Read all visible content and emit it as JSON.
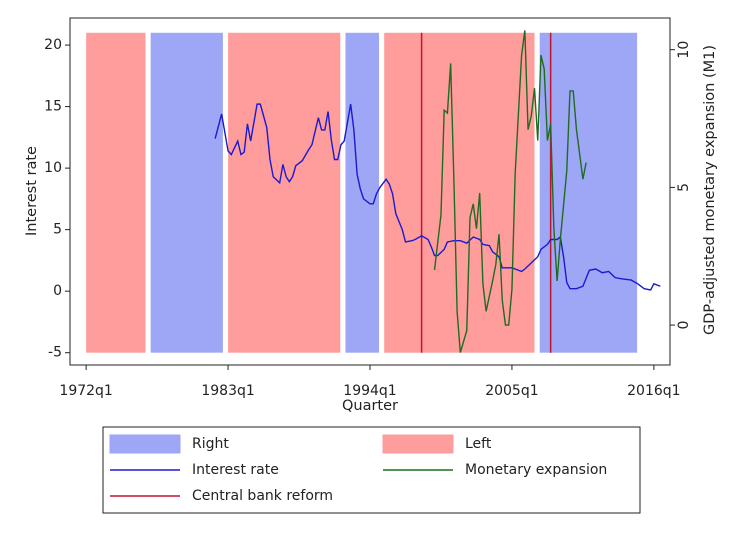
{
  "chart_data": {
    "type": "line",
    "xlabel": "Quarter",
    "ylabel": "Interest rate",
    "y2label": "GDP-adjusted monetary expansion (M1)",
    "xlim": [
      1970.75,
      2017.25
    ],
    "xticks": [
      {
        "value": 1972,
        "label": "1972q1"
      },
      {
        "value": 1983,
        "label": "1983q1"
      },
      {
        "value": 1994,
        "label": "1994q1"
      },
      {
        "value": 2005,
        "label": "2005q1"
      },
      {
        "value": 2016,
        "label": "2016q1"
      }
    ],
    "ylim": [
      -6,
      22.2
    ],
    "yticks": [
      -5,
      0,
      5,
      10,
      15,
      20
    ],
    "y2lim": [
      -1.45,
      11.15
    ],
    "y2ticks": [
      0,
      5,
      10
    ],
    "band_range": [
      -5,
      21
    ],
    "series": [
      {
        "name": "Right",
        "kind": "band",
        "color": "#9ea6f6",
        "spans": [
          [
            1977.0,
            1982.6
          ],
          [
            1992.1,
            1994.7
          ],
          [
            2007.15,
            2014.7
          ]
        ]
      },
      {
        "name": "Left",
        "kind": "band",
        "color": "#ff9d9d",
        "spans": [
          [
            1972.0,
            1976.6
          ],
          [
            1983.0,
            1991.7
          ],
          [
            1995.1,
            2006.75
          ]
        ]
      },
      {
        "name": "Interest rate",
        "kind": "line",
        "color": "#1a1ad0",
        "x": [
          1982.0,
          1982.5,
          1983.0,
          1983.25,
          1983.75,
          1984.0,
          1984.25,
          1984.5,
          1984.75,
          1985.25,
          1985.5,
          1986.0,
          1986.25,
          1986.5,
          1987.0,
          1987.25,
          1987.5,
          1987.75,
          1988.0,
          1988.25,
          1988.75,
          1989.25,
          1989.5,
          1990.0,
          1990.25,
          1990.5,
          1990.75,
          1991.0,
          1991.25,
          1991.5,
          1991.75,
          1992.0,
          1992.5,
          1992.75,
          1993.0,
          1993.25,
          1993.5,
          1994.0,
          1994.25,
          1994.5,
          1994.75,
          1995.25,
          1995.5,
          1995.75,
          1996.0,
          1996.5,
          1996.75,
          1997.25,
          1997.5,
          1998.0,
          1998.5,
          1998.75,
          1999.0,
          1999.25,
          1999.75,
          2000.0,
          2000.5,
          2001.0,
          2001.5,
          2002.0,
          2002.5,
          2002.75,
          2003.25,
          2003.5,
          2004.0,
          2004.25,
          2005.0,
          2005.25,
          2005.75,
          2006.0,
          2006.5,
          2007.0,
          2007.25,
          2007.75,
          2008.0,
          2008.5,
          2008.75,
          2009.0,
          2009.25,
          2009.5,
          2010.0,
          2010.5,
          2011.0,
          2011.5,
          2012.0,
          2012.5,
          2013.0,
          2013.5,
          2014.25,
          2014.75,
          2015.25,
          2015.75,
          2016.0,
          2016.5
        ],
        "values": [
          12.4,
          14.4,
          11.4,
          11.1,
          12.2,
          11.1,
          11.3,
          13.6,
          12.2,
          15.2,
          15.2,
          13.3,
          10.7,
          9.3,
          8.8,
          10.3,
          9.3,
          8.9,
          9.3,
          10.2,
          10.6,
          11.5,
          11.9,
          14.1,
          13.1,
          13.1,
          14.6,
          12.3,
          10.7,
          10.7,
          11.9,
          12.2,
          15.2,
          13.1,
          9.5,
          8.3,
          7.5,
          7.1,
          7.1,
          7.9,
          8.4,
          9.1,
          8.7,
          7.9,
          6.3,
          5.0,
          4.0,
          4.1,
          4.2,
          4.5,
          4.2,
          3.6,
          2.9,
          2.9,
          3.4,
          4.0,
          4.1,
          4.1,
          3.9,
          4.4,
          4.2,
          3.8,
          3.7,
          3.2,
          2.8,
          1.9,
          1.9,
          1.8,
          1.6,
          1.8,
          2.3,
          2.8,
          3.4,
          3.8,
          4.2,
          4.2,
          4.4,
          2.8,
          0.7,
          0.2,
          0.2,
          0.4,
          1.7,
          1.8,
          1.5,
          1.6,
          1.1,
          1.0,
          0.9,
          0.6,
          0.2,
          0.1,
          0.6,
          0.4
        ]
      },
      {
        "name": "Monetary expansion",
        "kind": "line",
        "axis": "y2",
        "color": "#1f6b1f",
        "x": [
          1999.0,
          1999.5,
          1999.75,
          2000.0,
          2000.25,
          2000.5,
          2000.75,
          2001.0,
          2001.5,
          2001.75,
          2002.0,
          2002.25,
          2002.5,
          2002.75,
          2003.0,
          2003.5,
          2003.75,
          2004.0,
          2004.25,
          2004.5,
          2004.75,
          2005.0,
          2005.25,
          2005.75,
          2006.0,
          2006.25,
          2006.5,
          2006.75,
          2007.0,
          2007.25,
          2007.5,
          2007.75,
          2008.0,
          2008.25,
          2008.5,
          2008.75,
          2009.25,
          2009.5,
          2009.75,
          2010.0,
          2010.25,
          2010.5,
          2010.75
        ],
        "values": [
          2.0,
          4.0,
          7.8,
          7.7,
          9.5,
          5.3,
          0.5,
          -1.0,
          -0.2,
          3.9,
          4.4,
          3.5,
          4.8,
          1.5,
          0.5,
          1.6,
          2.2,
          3.3,
          0.9,
          0.0,
          0.0,
          1.3,
          5.5,
          9.8,
          10.7,
          7.1,
          7.6,
          8.6,
          6.7,
          9.8,
          9.3,
          6.7,
          7.3,
          3.5,
          1.6,
          3.1,
          5.6,
          8.5,
          8.5,
          7.1,
          6.2,
          5.3,
          5.9
        ]
      },
      {
        "name": "Central bank reform",
        "kind": "vline",
        "color": "#c3142e",
        "x": [
          1998.0,
          2008.0
        ]
      }
    ]
  }
}
